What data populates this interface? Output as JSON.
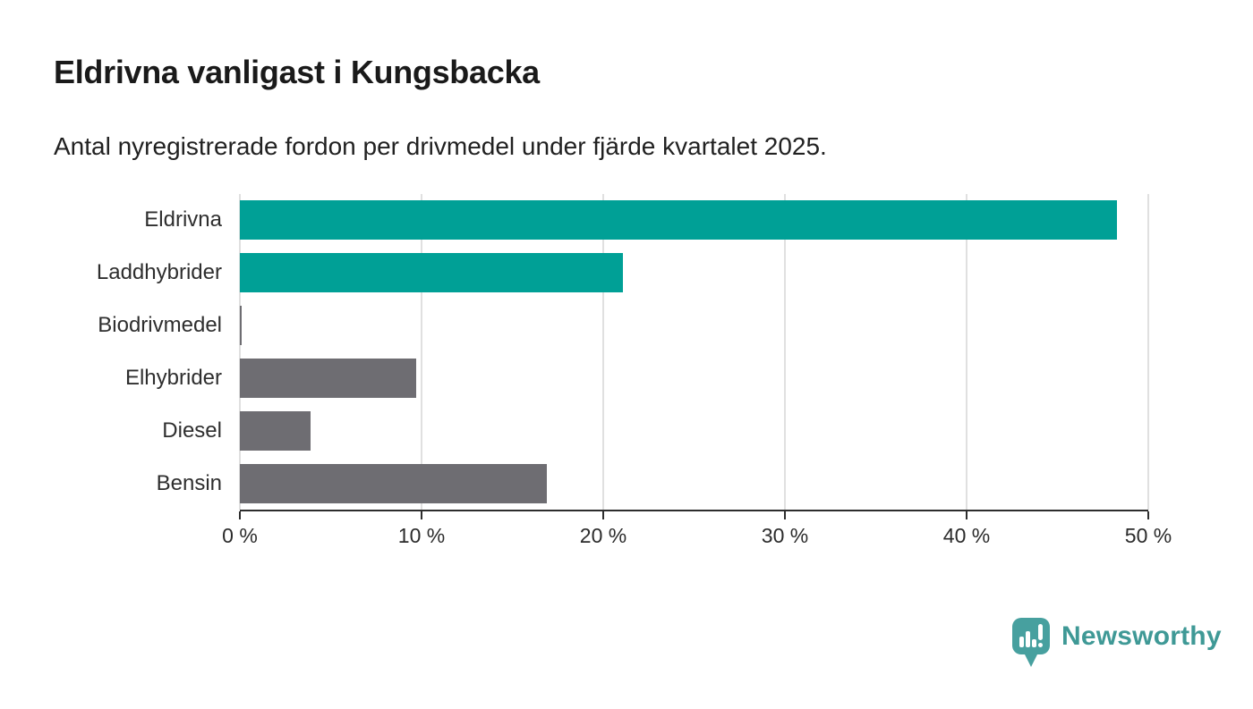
{
  "header": {
    "title": "Eldrivna vanligast i Kungsbacka",
    "subtitle": "Antal nyregistrerade fordon per drivmedel under fjärde kvartalet 2025."
  },
  "chart_data": {
    "type": "bar",
    "orientation": "horizontal",
    "title": "Eldrivna vanligast i Kungsbacka",
    "subtitle": "Antal nyregistrerade fordon per drivmedel under fjärde kvartalet 2025.",
    "categories": [
      "Eldrivna",
      "Laddhybrider",
      "Biodrivmedel",
      "Elhybrider",
      "Diesel",
      "Bensin"
    ],
    "values": [
      48.3,
      21.1,
      0.1,
      9.7,
      3.9,
      16.9
    ],
    "unit": "%",
    "bar_colors": [
      "#00a096",
      "#00a096",
      "#6e6d72",
      "#6e6d72",
      "#6e6d72",
      "#6e6d72"
    ],
    "xlim": [
      0,
      50
    ],
    "x_ticks": [
      0,
      10,
      20,
      30,
      40,
      50
    ],
    "x_tick_labels": [
      "0 %",
      "10 %",
      "20 %",
      "30 %",
      "40 %",
      "50 %"
    ],
    "grid": true,
    "legend": false
  },
  "colors": {
    "accent_teal": "#00a096",
    "neutral_gray": "#6e6d72",
    "gridline": "#e0e0e0",
    "axis": "#2d2d2d",
    "text": "#212121",
    "brand_teal": "#3f9996",
    "logo_pin_teal": "#47a09f"
  },
  "footer": {
    "brand": "Newsworthy",
    "logo_icon": "newsworthy-pin-bar-chart-icon"
  }
}
